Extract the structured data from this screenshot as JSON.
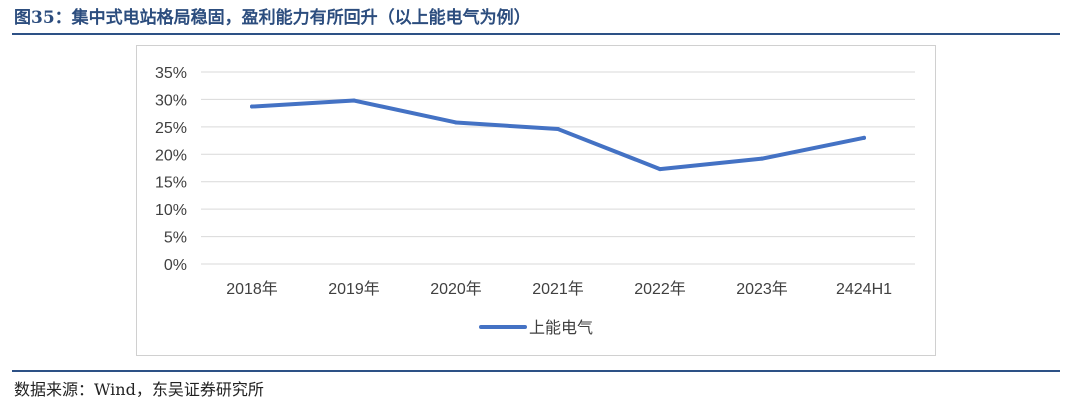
{
  "header": {
    "figure_title": "图35：集中式电站格局稳固，盈利能力有所回升（以上能电气为例）"
  },
  "footer": {
    "source": "数据来源：Wind，东吴证券研究所"
  },
  "colors": {
    "series_line": "#4472c4",
    "gridline": "#d9d9d9",
    "axis_text": "#404040",
    "title_text": "#2c4d7e",
    "rule": "#2d5186"
  },
  "chart_data": {
    "type": "line",
    "title": "",
    "xlabel": "",
    "ylabel": "",
    "categories": [
      "2018年",
      "2019年",
      "2020年",
      "2021年",
      "2022年",
      "2023年",
      "2424H1"
    ],
    "y_tick_labels": [
      "35%",
      "30%",
      "25%",
      "20%",
      "15%",
      "10%",
      "5%",
      "0%"
    ],
    "ylim": [
      0,
      35
    ],
    "y_tick_step": 5,
    "grid": true,
    "legend_position": "bottom",
    "series": [
      {
        "name": "上能电气",
        "values": [
          28.7,
          29.8,
          25.8,
          24.6,
          17.3,
          19.2,
          23.0
        ]
      }
    ]
  }
}
